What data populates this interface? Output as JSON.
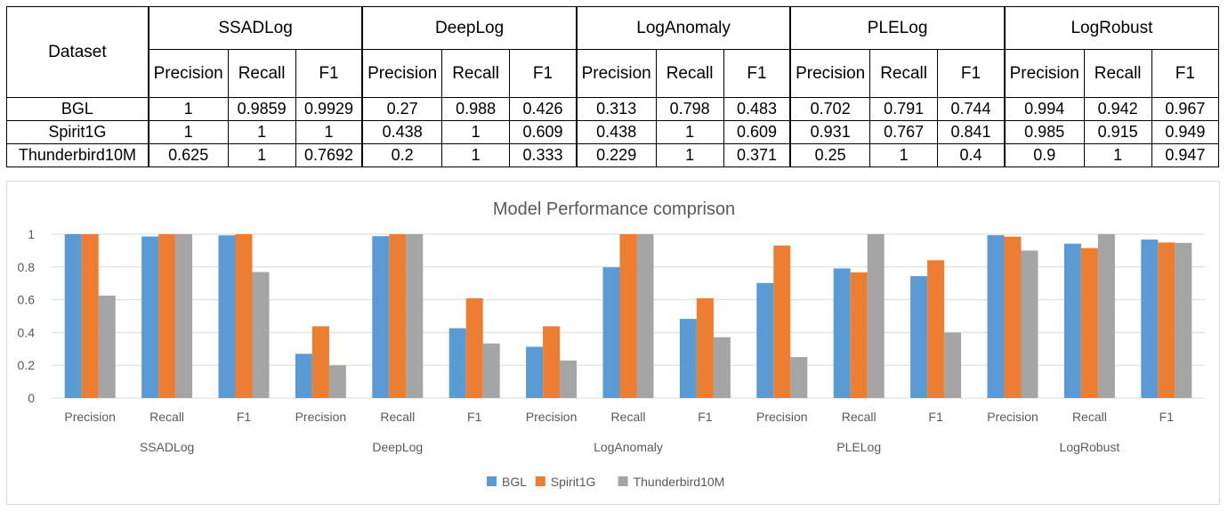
{
  "table": {
    "header_dataset": "Dataset",
    "models": [
      "SSADLog",
      "DeepLog",
      "LogAnomaly",
      "PLELog",
      "LogRobust"
    ],
    "metrics": [
      "Precision",
      "Recall",
      "F1"
    ],
    "rows": [
      {
        "dataset": "BGL",
        "values": [
          "1",
          "0.9859",
          "0.9929",
          "0.27",
          "0.988",
          "0.426",
          "0.313",
          "0.798",
          "0.483",
          "0.702",
          "0.791",
          "0.744",
          "0.994",
          "0.942",
          "0.967"
        ]
      },
      {
        "dataset": "Spirit1G",
        "values": [
          "1",
          "1",
          "1",
          "0.438",
          "1",
          "0.609",
          "0.438",
          "1",
          "0.609",
          "0.931",
          "0.767",
          "0.841",
          "0.985",
          "0.915",
          "0.949"
        ]
      },
      {
        "dataset": "Thunderbird10M",
        "values": [
          "0.625",
          "1",
          "0.7692",
          "0.2",
          "1",
          "0.333",
          "0.229",
          "1",
          "0.371",
          "0.25",
          "1",
          "0.4",
          "0.9",
          "1",
          "0.947"
        ]
      }
    ]
  },
  "chart_data": {
    "type": "bar",
    "title": "Model Performance comprison",
    "groups": [
      "SSADLog",
      "DeepLog",
      "LogAnomaly",
      "PLELog",
      "LogRobust"
    ],
    "categories": [
      "Precision",
      "Recall",
      "F1",
      "Precision",
      "Recall",
      "F1",
      "Precision",
      "Recall",
      "F1",
      "Precision",
      "Recall",
      "F1",
      "Precision",
      "Recall",
      "F1"
    ],
    "series": [
      {
        "name": "BGL",
        "color": "#5b9bd5",
        "values": [
          1,
          0.9859,
          0.9929,
          0.27,
          0.988,
          0.426,
          0.313,
          0.798,
          0.483,
          0.702,
          0.791,
          0.744,
          0.994,
          0.942,
          0.967
        ]
      },
      {
        "name": "Spirit1G",
        "color": "#ed7d31",
        "values": [
          1,
          1,
          1,
          0.438,
          1,
          0.609,
          0.438,
          1,
          0.609,
          0.931,
          0.767,
          0.841,
          0.985,
          0.915,
          0.949
        ]
      },
      {
        "name": "Thunderbird10M",
        "color": "#a5a5a5",
        "values": [
          0.625,
          1,
          0.7692,
          0.2,
          1,
          0.333,
          0.229,
          1,
          0.371,
          0.25,
          1,
          0.4,
          0.9,
          1,
          0.947
        ]
      }
    ],
    "ylim": [
      0,
      1
    ],
    "yticks": [
      0,
      0.2,
      0.4,
      0.6,
      0.8,
      1
    ],
    "ytick_labels": [
      "0",
      "0.2",
      "0.4",
      "0.6",
      "0.8",
      "1"
    ],
    "grid": true,
    "legend": "bottom-center"
  }
}
